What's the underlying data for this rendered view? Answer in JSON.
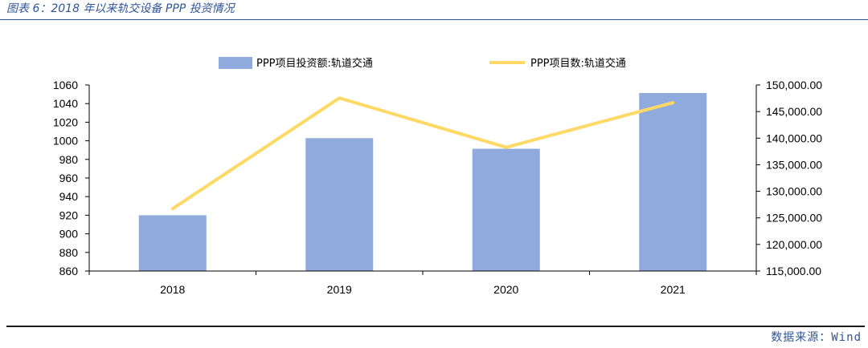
{
  "figure": {
    "title": "图表 6：2018 年以来轨交设备 PPP 投资情况",
    "source": "数据来源：Wind"
  },
  "colors": {
    "bar": "#8faadc",
    "line": "#ffd966",
    "title": "#2f5597",
    "axis": "#000000"
  },
  "chart_data": {
    "type": "bar",
    "title": "",
    "categories": [
      "2018",
      "2019",
      "2020",
      "2021"
    ],
    "series": [
      {
        "name": "PPP项目投资额:轨道交通",
        "type": "bar",
        "axis": "right",
        "values": [
          125500,
          140000,
          138000,
          148500
        ]
      },
      {
        "name": "PPP项目数:轨道交通",
        "type": "line",
        "axis": "left",
        "values": [
          927,
          1046,
          993,
          1041
        ]
      }
    ],
    "y_left": {
      "lim": [
        860,
        1060
      ],
      "ticks": [
        "1060",
        "1040",
        "1020",
        "1000",
        "980",
        "960",
        "940",
        "920",
        "900",
        "880",
        "860"
      ]
    },
    "y_right": {
      "lim": [
        115000,
        150000
      ],
      "ticks": [
        "150,000.00",
        "145,000.00",
        "140,000.00",
        "135,000.00",
        "130,000.00",
        "125,000.00",
        "120,000.00",
        "115,000.00"
      ]
    },
    "legend_position": "top",
    "grid": false
  }
}
